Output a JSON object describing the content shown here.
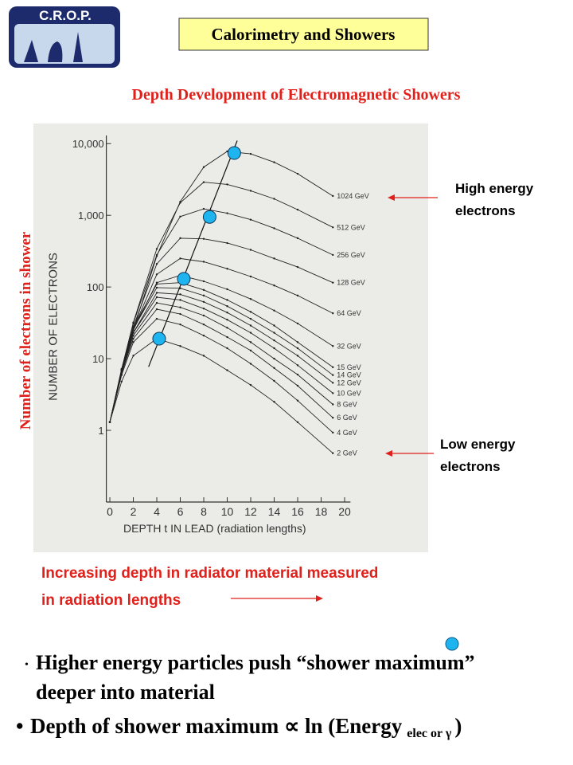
{
  "logo": "C.R.O.P.",
  "header": "Calorimetry and Showers",
  "subtitle": "Depth Development of Electromagnetic Showers",
  "outer_y_label": "Number of electrons in shower",
  "annotations": {
    "high": [
      "High energy",
      "electrons"
    ],
    "low": [
      "Low energy",
      "electrons"
    ],
    "depth": [
      "Increasing depth in radiator material measured",
      "in radiation lengths"
    ]
  },
  "bullets": {
    "first": [
      "Higher energy particles push “shower maximum”",
      "deeper into material"
    ],
    "second": [
      "Depth of shower maximum ∝ ln (Energy",
      "elec or γ",
      ")"
    ]
  },
  "chart_data": {
    "type": "line",
    "y_label": "NUMBER OF ELECTRONS",
    "x_label": "DEPTH t IN LEAD (radiation lengths)",
    "log_y": true,
    "xlim": [
      -0.3,
      20.5
    ],
    "ylim": [
      0.1,
      13000
    ],
    "xticks": [
      0,
      2,
      4,
      6,
      8,
      10,
      12,
      14,
      16,
      18,
      20
    ],
    "yticks": [
      1,
      10,
      100,
      {
        "value": 1000,
        "label": "1,000"
      },
      {
        "value": 10000,
        "label": "10,000"
      }
    ],
    "x": [
      0,
      1,
      2,
      4,
      6,
      8,
      10,
      12,
      14,
      16,
      19
    ],
    "series": [
      {
        "name": "1024 GeV",
        "color": "#222222",
        "values": [
          1.3,
          6.0,
          25,
          270,
          1550,
          4700,
          7800,
          7200,
          5500,
          3800,
          1860
        ]
      },
      {
        "name": "512 GeV",
        "color": "#222222",
        "values": [
          1.3,
          7.1,
          32,
          340,
          1500,
          2900,
          2700,
          2200,
          1700,
          1200,
          680
        ]
      },
      {
        "name": "256 GeV",
        "color": "#222222",
        "values": [
          1.3,
          7.0,
          31,
          280,
          960,
          1230,
          1070,
          870,
          660,
          480,
          280
        ]
      },
      {
        "name": "128 GeV",
        "color": "#222222",
        "values": [
          1.3,
          6.9,
          28,
          210,
          480,
          470,
          410,
          330,
          250,
          190,
          115
        ]
      },
      {
        "name": "64 GeV",
        "color": "#222222",
        "values": [
          1.3,
          6.6,
          26,
          150,
          250,
          225,
          180,
          140,
          105,
          76,
          43
        ]
      },
      {
        "name": "32 GeV",
        "color": "#222222",
        "values": [
          1.3,
          6.6,
          25,
          115,
          145,
          120,
          93,
          68,
          47,
          31,
          15
        ]
      },
      {
        "name": "15 GeV",
        "color": "#222222",
        "values": [
          1.3,
          7.2,
          27,
          110,
          115,
          91,
          66,
          45,
          29,
          17,
          7.6
        ]
      },
      {
        "name": "14 GeV",
        "color": "#222222",
        "values": [
          1.3,
          6.9,
          26,
          98,
          96,
          76,
          54,
          36,
          23,
          14,
          5.9
        ]
      },
      {
        "name": "12 GeV",
        "color": "#222222",
        "values": [
          1.3,
          6.8,
          23,
          83,
          79,
          62,
          44,
          29,
          18,
          11,
          4.6
        ]
      },
      {
        "name": "10 GeV",
        "color": "#222222",
        "values": [
          1.3,
          6.8,
          23,
          72,
          66,
          50,
          35,
          23,
          14,
          8.1,
          3.3
        ]
      },
      {
        "name": "8 GeV",
        "color": "#222222",
        "values": [
          1.3,
          6.5,
          21,
          60,
          52,
          40,
          27,
          17,
          10,
          6.0,
          2.3
        ]
      },
      {
        "name": "6 GeV",
        "color": "#222222",
        "values": [
          1.3,
          6.3,
          19,
          49,
          42,
          30,
          20,
          13,
          7.4,
          4.2,
          1.5
        ]
      },
      {
        "name": "4 GeV",
        "color": "#222222",
        "values": [
          1.3,
          5.9,
          17,
          36,
          30,
          21,
          14,
          8.5,
          4.9,
          2.6,
          0.93
        ]
      },
      {
        "name": "2 GeV",
        "color": "#222222",
        "values": [
          1.3,
          4.8,
          11,
          19,
          15,
          11,
          6.9,
          4.3,
          2.5,
          1.3,
          0.48
        ]
      }
    ],
    "maxima": {
      "color": "#1eb4f0",
      "x": [
        4.2,
        6.3,
        8.5,
        10.6
      ],
      "y": [
        19,
        130,
        950,
        7400
      ]
    },
    "maxima_line": {
      "x": [
        3.3,
        10.85
      ],
      "y": [
        7.7,
        11000
      ]
    }
  }
}
